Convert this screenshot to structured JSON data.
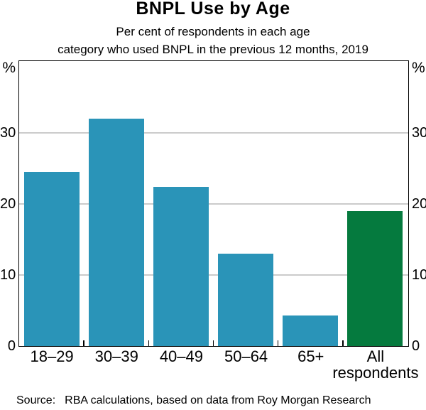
{
  "title": "BNPL Use by Age",
  "subtitle": {
    "line1": "Per cent of respondents in each age",
    "line2": "category who used BNPL in the previous 12 months, 2019"
  },
  "axis": {
    "unit_left": "%",
    "unit_right": "%"
  },
  "source": {
    "label": "Source:",
    "text": "RBA calculations, based on data from Roy Morgan Research"
  },
  "colors": {
    "bar_teal": "#2A94B8",
    "bar_green": "#057A3E",
    "gridline": "#CBCBCB",
    "axis_border": "#000000"
  },
  "chart_data": {
    "type": "bar",
    "title": "BNPL Use by Age",
    "subtitle": "Per cent of respondents in each age category who used BNPL in the previous 12 months, 2019",
    "categories": [
      "18–29",
      "30–39",
      "40–49",
      "50–64",
      "65+",
      "All\nrespondents"
    ],
    "values": [
      24.5,
      32,
      22.4,
      13,
      4.3,
      19
    ],
    "bar_colors": [
      "#2A94B8",
      "#2A94B8",
      "#2A94B8",
      "#2A94B8",
      "#2A94B8",
      "#057A3E"
    ],
    "xlabel": "",
    "ylabel": "%",
    "ylim": [
      0,
      40
    ],
    "yticks": [
      0,
      10,
      20,
      30
    ],
    "gridlines_at": [
      10,
      20,
      30
    ],
    "grid": true,
    "legend": "none"
  }
}
